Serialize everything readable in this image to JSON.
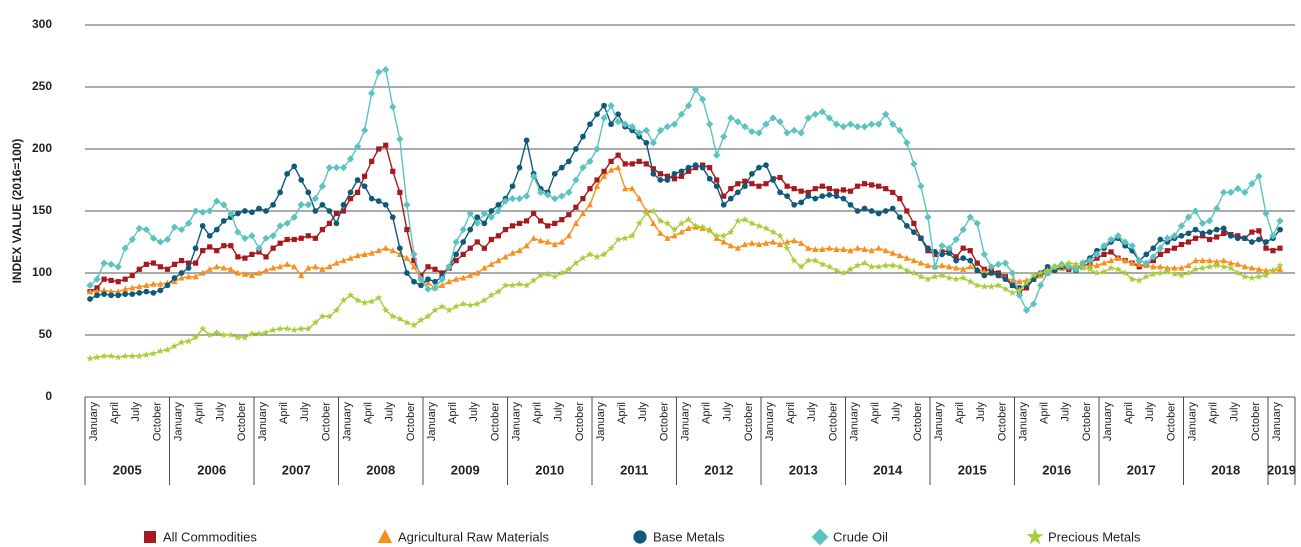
{
  "chart_data": {
    "type": "line",
    "y_label": "INDEX VALUE (2016=100)",
    "ylim": [
      0,
      300
    ],
    "yticks": [
      0,
      50,
      100,
      150,
      200,
      250,
      300
    ],
    "grid": true,
    "categories": [
      "January",
      null,
      null,
      "April",
      null,
      null,
      "July",
      null,
      null,
      "October",
      null,
      null,
      "January",
      null,
      null,
      "April",
      null,
      null,
      "July",
      null,
      null,
      "October",
      null,
      null,
      "January",
      null,
      null,
      "April",
      null,
      null,
      "July",
      null,
      null,
      "October",
      null,
      null,
      "January",
      null,
      null,
      "April",
      null,
      null,
      "July",
      null,
      null,
      "October",
      null,
      null,
      "January",
      null,
      null,
      "April",
      null,
      null,
      "July",
      null,
      null,
      "October",
      null,
      null,
      "January",
      null,
      null,
      "April",
      null,
      null,
      "July",
      null,
      null,
      "October",
      null,
      null,
      "January",
      null,
      null,
      "April",
      null,
      null,
      "July",
      null,
      null,
      "October",
      null,
      null,
      "January",
      null,
      null,
      "April",
      null,
      null,
      "July",
      null,
      null,
      "October",
      null,
      null,
      "January",
      null,
      null,
      "April",
      null,
      null,
      "July",
      null,
      null,
      "October",
      null,
      null,
      "January",
      null,
      null,
      "April",
      null,
      null,
      "July",
      null,
      null,
      "October",
      null,
      null,
      "January",
      null,
      null,
      "April",
      null,
      null,
      "July",
      null,
      null,
      "October",
      null,
      null,
      "January",
      null,
      null,
      "April",
      null,
      null,
      "July",
      null,
      null,
      "October",
      null,
      null,
      "January",
      null,
      null,
      "April",
      null,
      null,
      "July",
      null,
      null,
      "October",
      null,
      null,
      "January",
      null,
      null,
      "April",
      null,
      null,
      "July",
      null,
      null,
      "October",
      null,
      null,
      "January",
      null
    ],
    "years": [
      "2005",
      "2006",
      "2007",
      "2008",
      "2009",
      "2010",
      "2011",
      "2012",
      "2013",
      "2014",
      "2015",
      "2016",
      "2017",
      "2018",
      "2019"
    ],
    "series": [
      {
        "name": "All Commodities",
        "color": "#a6191e",
        "marker": "square",
        "values": [
          85,
          88,
          95,
          94,
          93,
          95,
          98,
          103,
          107,
          108,
          105,
          103,
          107,
          110,
          108,
          108,
          118,
          121,
          118,
          122,
          122,
          113,
          112,
          115,
          117,
          113,
          120,
          124,
          127,
          127,
          128,
          130,
          128,
          135,
          140,
          148,
          150,
          160,
          165,
          178,
          190,
          200,
          203,
          182,
          165,
          135,
          110,
          98,
          105,
          103,
          100,
          104,
          110,
          115,
          120,
          125,
          120,
          127,
          130,
          135,
          138,
          140,
          142,
          148,
          142,
          138,
          140,
          143,
          147,
          153,
          160,
          168,
          175,
          182,
          190,
          195,
          188,
          188,
          190,
          188,
          184,
          180,
          178,
          176,
          178,
          182,
          185,
          187,
          185,
          175,
          162,
          168,
          172,
          174,
          172,
          170,
          172,
          176,
          177,
          170,
          168,
          166,
          165,
          168,
          170,
          168,
          166,
          167,
          166,
          170,
          172,
          171,
          170,
          168,
          165,
          160,
          150,
          140,
          128,
          118,
          115,
          117,
          118,
          113,
          120,
          118,
          108,
          103,
          102,
          100,
          97,
          90,
          85,
          88,
          95,
          98,
          100,
          102,
          104,
          103,
          104,
          105,
          108,
          112,
          115,
          117,
          112,
          110,
          108,
          105,
          107,
          110,
          115,
          118,
          120,
          123,
          125,
          128,
          130,
          127,
          129,
          132,
          131,
          130,
          128,
          133,
          134,
          120,
          118,
          120
        ]
      },
      {
        "name": "Agricultural Raw Materials",
        "color": "#f7901e",
        "marker": "triangle",
        "values": [
          85,
          85,
          86,
          85,
          85,
          87,
          88,
          89,
          90,
          91,
          91,
          92,
          93,
          96,
          97,
          97,
          100,
          103,
          105,
          104,
          103,
          100,
          99,
          98,
          100,
          102,
          104,
          105,
          107,
          105,
          98,
          104,
          105,
          103,
          105,
          108,
          110,
          112,
          114,
          115,
          116,
          118,
          120,
          118,
          115,
          112,
          105,
          95,
          92,
          88,
          90,
          93,
          95,
          96,
          98,
          100,
          104,
          107,
          110,
          113,
          116,
          118,
          122,
          128,
          126,
          125,
          123,
          125,
          130,
          140,
          148,
          155,
          170,
          178,
          183,
          185,
          168,
          168,
          160,
          150,
          140,
          132,
          128,
          130,
          133,
          136,
          137,
          136,
          135,
          128,
          125,
          122,
          120,
          123,
          124,
          123,
          124,
          125,
          123,
          125,
          126,
          124,
          120,
          119,
          119,
          120,
          119,
          119,
          118,
          120,
          119,
          118,
          120,
          118,
          116,
          114,
          112,
          110,
          108,
          106,
          105,
          106,
          105,
          104,
          103,
          105,
          103,
          101,
          100,
          98,
          96,
          94,
          93,
          94,
          96,
          98,
          100,
          102,
          104,
          105,
          106,
          106,
          106,
          106,
          108,
          110,
          112,
          110,
          108,
          107,
          106,
          105,
          105,
          104,
          104,
          104,
          106,
          110,
          110,
          110,
          109,
          110,
          108,
          107,
          105,
          104,
          103,
          102,
          102,
          103
        ]
      },
      {
        "name": "Base Metals",
        "color": "#0f5a7a",
        "marker": "circle",
        "values": [
          79,
          82,
          83,
          82,
          82,
          83,
          83,
          84,
          85,
          84,
          86,
          90,
          96,
          100,
          104,
          120,
          138,
          130,
          135,
          142,
          145,
          148,
          150,
          149,
          152,
          150,
          155,
          165,
          180,
          186,
          175,
          165,
          150,
          155,
          150,
          140,
          155,
          165,
          175,
          170,
          160,
          158,
          155,
          145,
          120,
          100,
          93,
          90,
          95,
          93,
          97,
          105,
          115,
          125,
          135,
          145,
          140,
          150,
          155,
          160,
          170,
          185,
          207,
          180,
          168,
          165,
          180,
          185,
          190,
          200,
          210,
          220,
          228,
          235,
          220,
          228,
          218,
          215,
          210,
          205,
          180,
          175,
          175,
          180,
          182,
          185,
          187,
          185,
          176,
          170,
          155,
          160,
          165,
          170,
          180,
          185,
          187,
          175,
          165,
          162,
          155,
          157,
          162,
          160,
          162,
          163,
          162,
          160,
          155,
          150,
          152,
          150,
          148,
          150,
          152,
          145,
          138,
          133,
          128,
          120,
          117,
          115,
          116,
          110,
          112,
          110,
          102,
          98,
          100,
          98,
          95,
          90,
          88,
          90,
          95,
          100,
          105,
          102,
          105,
          105,
          102,
          108,
          112,
          118,
          120,
          125,
          128,
          122,
          118,
          110,
          115,
          120,
          127,
          125,
          128,
          130,
          132,
          135,
          132,
          133,
          135,
          136,
          130,
          128,
          128,
          125,
          127,
          125,
          128,
          135
        ]
      },
      {
        "name": "Crude Oil",
        "color": "#5bc4c0",
        "marker": "diamond",
        "values": [
          90,
          95,
          108,
          107,
          105,
          120,
          127,
          136,
          135,
          128,
          125,
          127,
          137,
          135,
          140,
          150,
          149,
          150,
          158,
          155,
          148,
          133,
          128,
          130,
          120,
          128,
          130,
          138,
          140,
          145,
          155,
          155,
          160,
          170,
          185,
          185,
          185,
          192,
          202,
          215,
          245,
          262,
          264,
          234,
          208,
          155,
          115,
          95,
          87,
          88,
          95,
          105,
          125,
          135,
          148,
          140,
          148,
          145,
          150,
          158,
          160,
          160,
          162,
          178,
          165,
          163,
          160,
          162,
          165,
          175,
          185,
          190,
          200,
          225,
          235,
          222,
          220,
          218,
          213,
          215,
          205,
          215,
          218,
          220,
          228,
          235,
          248,
          240,
          220,
          195,
          210,
          225,
          222,
          218,
          214,
          213,
          220,
          225,
          222,
          213,
          215,
          213,
          225,
          228,
          230,
          225,
          220,
          218,
          220,
          218,
          218,
          220,
          220,
          228,
          220,
          215,
          205,
          188,
          170,
          145,
          105,
          122,
          120,
          127,
          135,
          145,
          140,
          115,
          105,
          107,
          108,
          100,
          82,
          70,
          75,
          90,
          100,
          105,
          107,
          105,
          103,
          108,
          110,
          115,
          122,
          127,
          130,
          125,
          122,
          110,
          108,
          113,
          120,
          128,
          130,
          138,
          145,
          150,
          140,
          142,
          152,
          165,
          165,
          168,
          165,
          172,
          178,
          148,
          130,
          142
        ]
      },
      {
        "name": "Precious Metals",
        "color": "#a6ce39",
        "marker": "star",
        "values": [
          31,
          32,
          33,
          33,
          32,
          33,
          33,
          33,
          34,
          35,
          37,
          38,
          41,
          44,
          45,
          48,
          55,
          50,
          52,
          50,
          50,
          48,
          48,
          51,
          51,
          52,
          54,
          55,
          55,
          54,
          55,
          55,
          60,
          65,
          65,
          70,
          78,
          82,
          78,
          76,
          77,
          80,
          70,
          65,
          63,
          60,
          58,
          62,
          65,
          70,
          73,
          70,
          73,
          75,
          74,
          75,
          78,
          82,
          85,
          90,
          90,
          91,
          90,
          94,
          98,
          99,
          97,
          100,
          103,
          108,
          112,
          115,
          113,
          115,
          120,
          127,
          128,
          130,
          140,
          148,
          150,
          142,
          140,
          135,
          140,
          143,
          138,
          137,
          134,
          130,
          130,
          133,
          142,
          143,
          140,
          138,
          136,
          133,
          130,
          120,
          110,
          105,
          110,
          110,
          107,
          105,
          102,
          100,
          103,
          106,
          108,
          105,
          105,
          106,
          106,
          105,
          102,
          100,
          97,
          95,
          97,
          98,
          96,
          95,
          96,
          93,
          90,
          89,
          89,
          90,
          87,
          84,
          86,
          92,
          98,
          100,
          102,
          105,
          106,
          108,
          107,
          104,
          103,
          100,
          101,
          104,
          103,
          100,
          95,
          94,
          97,
          99,
          100,
          101,
          99,
          98,
          100,
          103,
          104,
          105,
          106,
          105,
          104,
          100,
          97,
          96,
          97,
          98,
          102,
          106
        ]
      }
    ]
  }
}
